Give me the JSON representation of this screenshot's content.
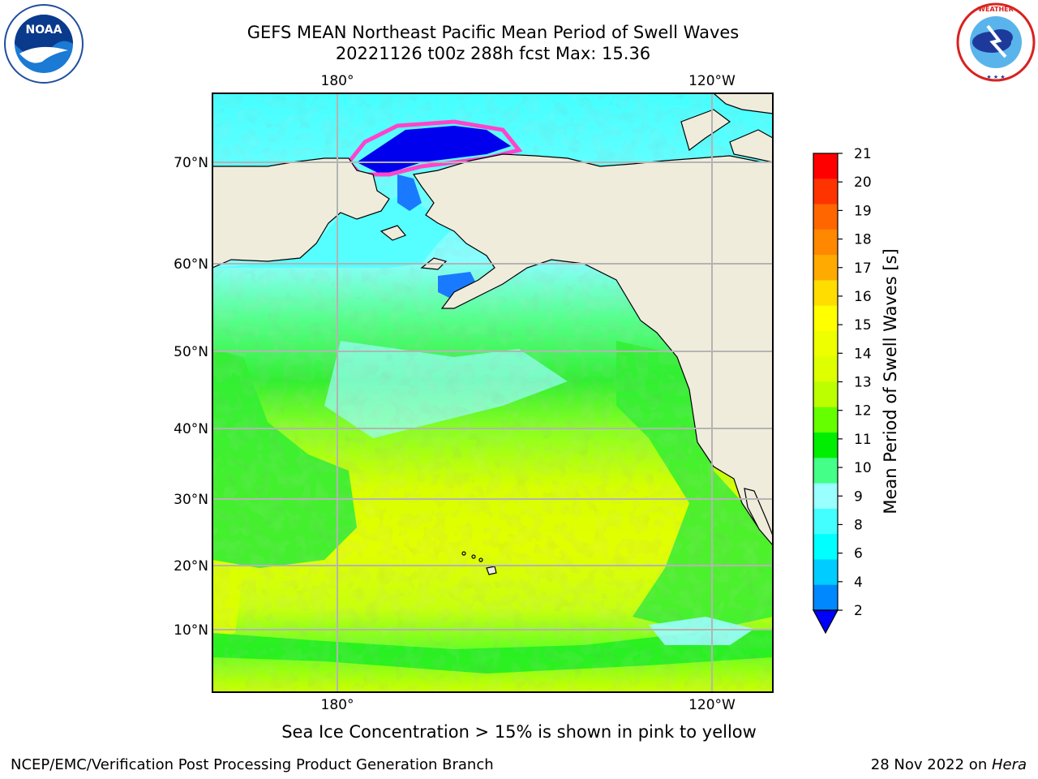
{
  "title": {
    "line1": "GEFS MEAN Northeast Pacific Mean Period of Swell Waves",
    "line2": "20221126 t00z 288h fcst   Max: 15.36"
  },
  "map": {
    "lon_labels_top": [
      "180°",
      "120°W"
    ],
    "lon_labels_bottom": [
      "180°",
      "120°W"
    ],
    "lat_labels": [
      "70°N",
      "60°N",
      "50°N",
      "40°N",
      "30°N",
      "20°N",
      "10°N"
    ],
    "colors": {
      "land": "#efecdc",
      "grid": "#b4b4b4",
      "coast": "#000000"
    }
  },
  "colorbar": {
    "label": "Mean Period of Swell Waves [s]",
    "ticks": [
      "21",
      "20",
      "19",
      "18",
      "17",
      "16",
      "15",
      "14",
      "13",
      "12",
      "11",
      "10",
      "9",
      "8",
      "6",
      "4",
      "2"
    ],
    "colors": [
      "#ff0000",
      "#ff3300",
      "#ff6600",
      "#ff8800",
      "#ffaa00",
      "#ffdd00",
      "#ffff00",
      "#eeff00",
      "#ddff00",
      "#bbff00",
      "#66ff00",
      "#00ee00",
      "#44ff88",
      "#99ffff",
      "#44ffff",
      "#00ffff",
      "#00ccff",
      "#0088ff"
    ],
    "extend_color": "#0000ff"
  },
  "note": "Sea Ice Concentration > 15% is shown in pink to yellow",
  "footer": {
    "left": "NCEP/EMC/Verification Post Processing Product Generation Branch",
    "right_date": "28 Nov 2022 on ",
    "right_machine": "Hera"
  },
  "logos": {
    "noaa": "NOAA",
    "nws": "NATIONAL WEATHER SERVICE"
  }
}
